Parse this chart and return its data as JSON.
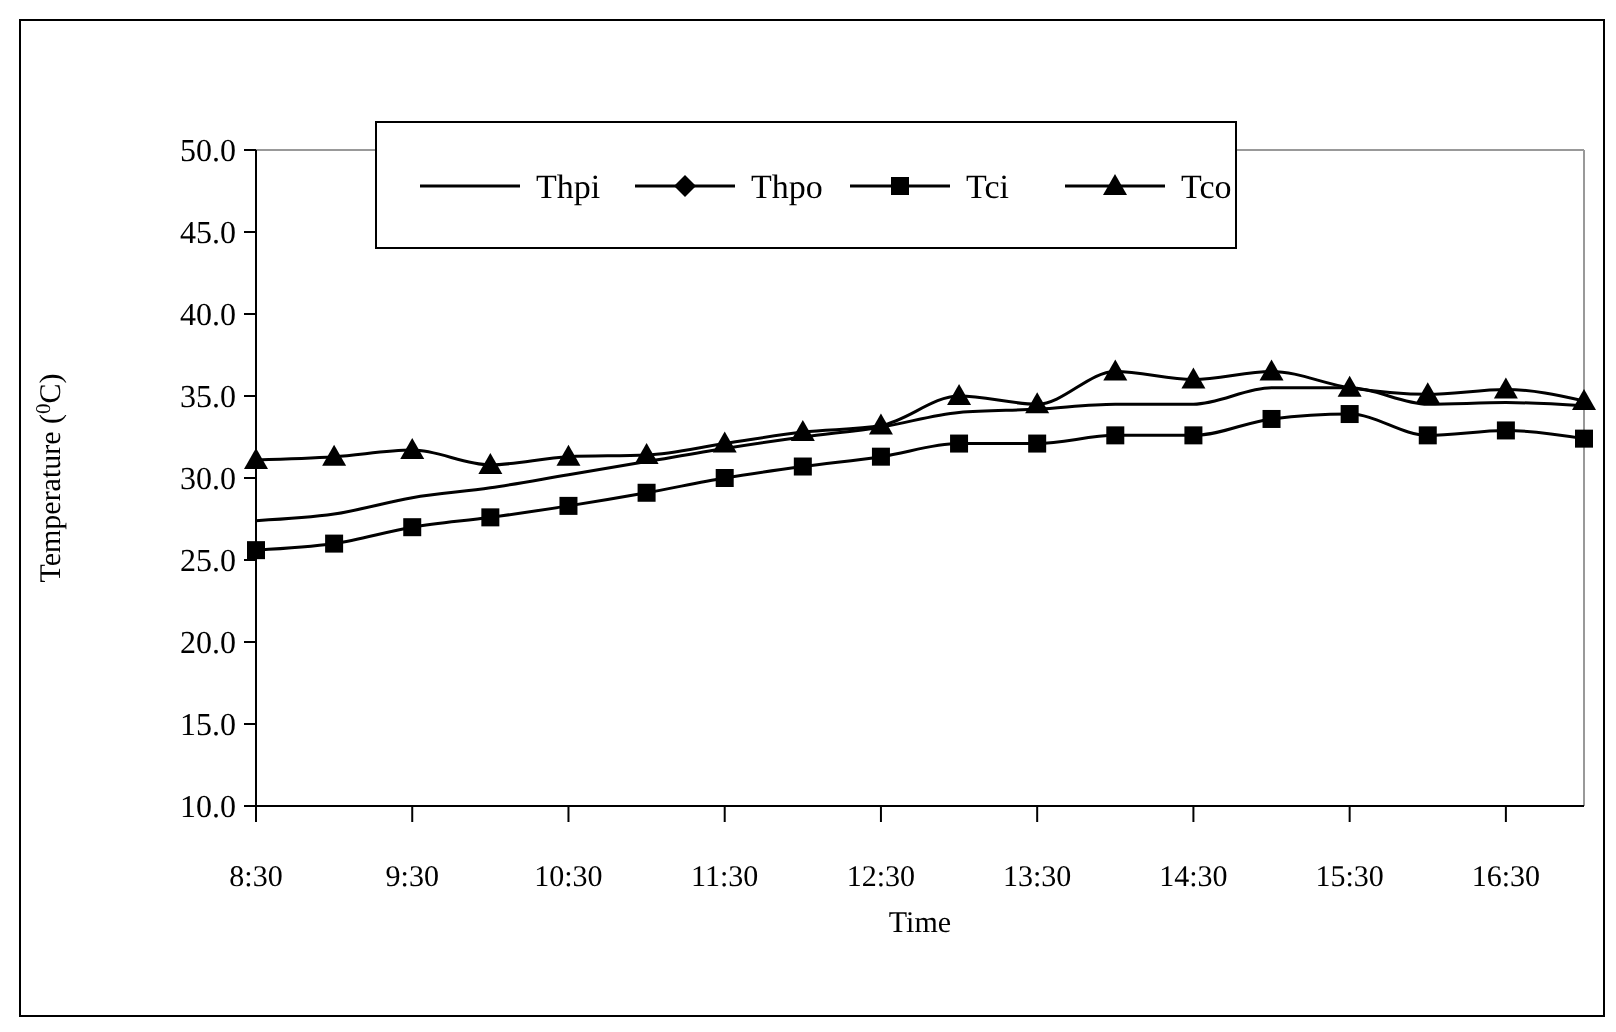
{
  "chart_data": {
    "type": "line",
    "xlabel": "Time",
    "ylabel": "Temperature ($^{0}$C)",
    "categories": [
      "8:30",
      null,
      "9:30",
      null,
      "10:30",
      null,
      "11:30",
      null,
      "12:30",
      null,
      "13:30",
      null,
      "14:30",
      null,
      "15:30",
      null,
      "16:30",
      null
    ],
    "ylim": [
      10,
      50
    ],
    "yticks": [
      {
        "value": 10,
        "label": "10.0"
      },
      {
        "value": 15,
        "label": "15.0"
      },
      {
        "value": 20,
        "label": "20.0"
      },
      {
        "value": 25,
        "label": "25.0"
      },
      {
        "value": 30,
        "label": "30.0"
      },
      {
        "value": 35,
        "label": "35.0"
      },
      {
        "value": 40,
        "label": "40.0"
      },
      {
        "value": 45,
        "label": "45.0"
      },
      {
        "value": 50,
        "label": "50.0"
      }
    ],
    "grid": false,
    "legend": "top",
    "line_style": "solid",
    "series": [
      {
        "name": "Thpi",
        "color": "#000000",
        "marker": "none",
        "values": [
          27.4,
          27.8,
          28.8,
          29.4,
          30.2,
          31.0,
          31.8,
          32.5,
          33.1,
          34.0,
          34.2,
          34.5,
          34.5,
          35.5,
          35.5,
          34.5,
          34.6,
          34.4
        ]
      },
      {
        "name": "Thpo",
        "color": "#000000",
        "marker": "diamond",
        "values": [
          null,
          null,
          null,
          null,
          null,
          null,
          null,
          null,
          null,
          null,
          null,
          null,
          null,
          null,
          null,
          null,
          null,
          null
        ]
      },
      {
        "name": "Tci",
        "color": "#000000",
        "marker": "square",
        "values": [
          25.6,
          26.0,
          27.0,
          27.6,
          28.3,
          29.1,
          30.0,
          30.7,
          31.3,
          32.1,
          32.1,
          32.6,
          32.6,
          33.6,
          33.9,
          32.6,
          32.9,
          32.4
        ]
      },
      {
        "name": "Tco",
        "color": "#000000",
        "marker": "triangle",
        "values": [
          31.1,
          31.3,
          31.7,
          30.8,
          31.3,
          31.4,
          32.1,
          32.8,
          33.2,
          35.0,
          34.5,
          36.5,
          36.0,
          36.5,
          35.5,
          35.1,
          35.4,
          34.7
        ]
      }
    ]
  }
}
